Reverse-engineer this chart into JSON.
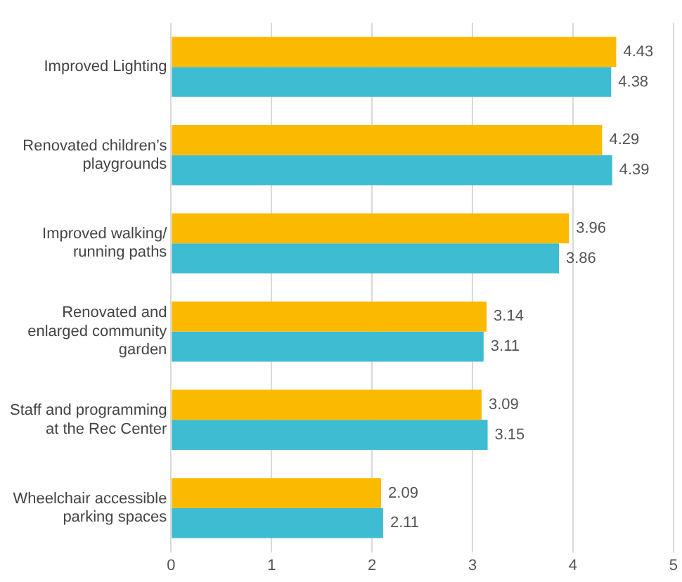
{
  "chart_data": {
    "type": "bar",
    "orientation": "horizontal",
    "categories": [
      "Improved Lighting",
      "Renovated children’s playgrounds",
      "Improved walking/ running paths",
      "Renovated and enlarged community garden",
      "Staff and programming at the Rec Center",
      "Wheelchair accessible parking spaces"
    ],
    "series": [
      {
        "color": "#fbb900",
        "values": [
          4.43,
          4.29,
          3.96,
          3.14,
          3.09,
          2.09
        ]
      },
      {
        "color": "#3dbcd2",
        "values": [
          4.38,
          4.39,
          3.86,
          3.11,
          3.15,
          2.11
        ]
      }
    ],
    "xlim": [
      0,
      5
    ],
    "xticks": [
      0,
      1,
      2,
      3,
      4,
      5
    ],
    "grid": "x",
    "data_labels": true,
    "legend": false
  }
}
